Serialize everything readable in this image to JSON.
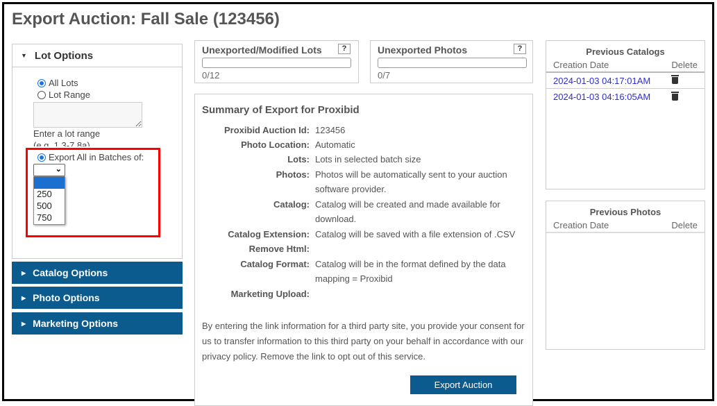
{
  "title": "Export Auction: Fall Sale (123456)",
  "lot_options": {
    "header": "Lot Options",
    "all_lots": "All Lots",
    "lot_range": "Lot Range",
    "lot_range_value": "",
    "hint1": "Enter a lot range",
    "hint2": "(e.g. 1,3-7,8a)",
    "batches": "Export All in Batches of:",
    "batch_selected": "",
    "batch_options": [
      "",
      "250",
      "500",
      "750"
    ]
  },
  "sections": [
    "Catalog Options",
    "Photo Options",
    "Marketing Options"
  ],
  "unexported_lots": {
    "title": "Unexported/Modified Lots",
    "help": "?",
    "count": "0/12",
    "progress": 0
  },
  "unexported_photos": {
    "title": "Unexported Photos",
    "help": "?",
    "count": "0/7",
    "progress": 0
  },
  "summary": {
    "title": "Summary of Export for Proxibid",
    "rows": [
      {
        "label": "Proxibid Auction Id:",
        "value": "123456"
      },
      {
        "label": "Photo Location:",
        "value": "Automatic"
      },
      {
        "label": "Lots:",
        "value": "Lots in selected batch size"
      },
      {
        "label": "Photos:",
        "value": "Photos will be automatically sent to your auction software provider."
      },
      {
        "label": "Catalog:",
        "value": "Catalog will be created and made available for download."
      },
      {
        "label": "Catalog Extension:",
        "value": "Catalog will be saved with a file extension of .CSV"
      },
      {
        "label": "Remove Html:",
        "value": ""
      },
      {
        "label": "Catalog Format:",
        "value": "Catalog will be in the format defined by the data mapping = Proxibid"
      },
      {
        "label": "Marketing Upload:",
        "value": ""
      }
    ],
    "consent": "By entering the link information for a third party site, you provide your consent for us to transfer information to this third party on your behalf in accordance with our privacy policy. Remove the link to opt out of this service.",
    "export_button": "Export Auction"
  },
  "previous_catalogs": {
    "title": "Previous Catalogs",
    "col_date": "Creation Date",
    "col_delete": "Delete",
    "items": [
      "2024-01-03 04:17:01AM",
      "2024-01-03 04:16:05AM"
    ]
  },
  "previous_photos": {
    "title": "Previous Photos",
    "col_date": "Creation Date",
    "col_delete": "Delete"
  },
  "colors": {
    "accent": "#0b5b8e",
    "link": "#2b2bdb",
    "highlight": "#ff0000"
  }
}
